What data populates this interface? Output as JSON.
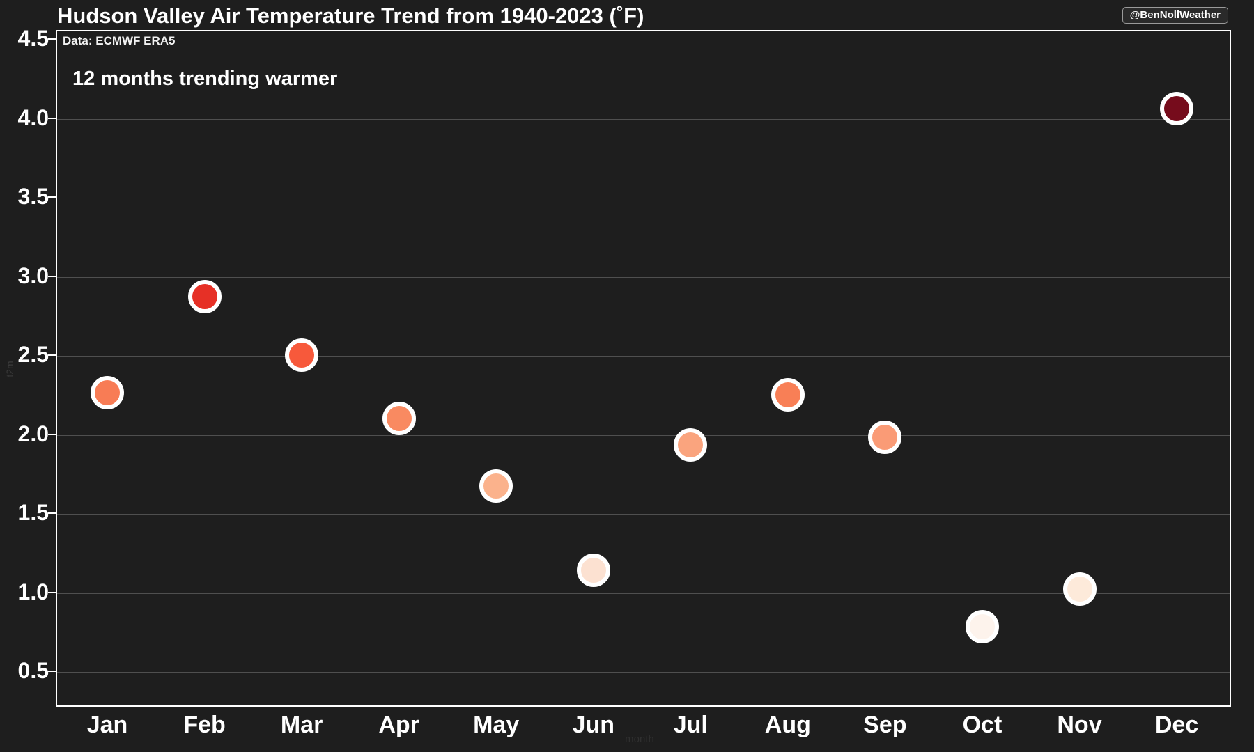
{
  "page": {
    "background": "#1e1e1e",
    "attribution": "@BenNollWeather"
  },
  "chart_data": {
    "type": "scatter",
    "title": "Hudson Valley Air Temperature Trend from 1940-2023 (˚F)",
    "subtitle": "Data: ECMWF ERA5",
    "annotation": "12 months trending warmer",
    "xlabel": "month",
    "ylabel": "t2m",
    "categories": [
      "Jan",
      "Feb",
      "Mar",
      "Apr",
      "May",
      "Jun",
      "Jul",
      "Aug",
      "Sep",
      "Oct",
      "Nov",
      "Dec"
    ],
    "values": [
      2.26,
      2.87,
      2.5,
      2.1,
      1.67,
      1.14,
      1.93,
      2.25,
      1.98,
      0.78,
      1.02,
      4.06
    ],
    "point_colors": [
      "#f87c55",
      "#e63026",
      "#f7593b",
      "#f98a61",
      "#fbb28c",
      "#fce1d1",
      "#faa47e",
      "#f87f56",
      "#fa9b76",
      "#fdf3ec",
      "#fdeada",
      "#760c1c"
    ],
    "marker_stroke": "#ffffff",
    "yticks": [
      4.5,
      4.0,
      3.5,
      3.0,
      2.5,
      2.0,
      1.5,
      1.0,
      0.5
    ],
    "ytick_labels": [
      "4.5",
      "4.0",
      "3.5",
      "3.0",
      "2.5",
      "2.0",
      "1.5",
      "1.0",
      "0.5"
    ],
    "ylim": [
      0.27,
      4.56
    ],
    "grid": "horizontal",
    "gridline_color": "#4f4f4f",
    "legend": "none"
  }
}
